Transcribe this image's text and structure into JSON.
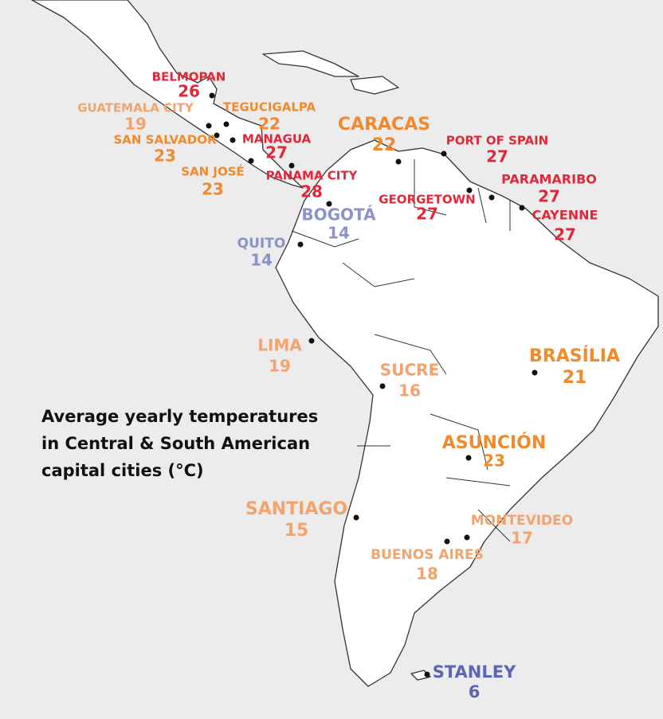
{
  "title_lines": [
    "Average yearly temperatures",
    "in Central & South American",
    "capital cities (°C)"
  ],
  "cities": [
    {
      "name": "BELMOPAN",
      "value": 26,
      "color": "#e0283a"
    },
    {
      "name": "GUATEMALA CITY",
      "value": 19,
      "color": "#f2a36e"
    },
    {
      "name": "TEGUCIGALPA",
      "value": 22,
      "color": "#f08a2c"
    },
    {
      "name": "SAN SALVADOR",
      "value": 23,
      "color": "#f08a2c"
    },
    {
      "name": "MANAGUA",
      "value": 27,
      "color": "#e0283a"
    },
    {
      "name": "SAN JOSÉ",
      "value": 23,
      "color": "#f08a2c"
    },
    {
      "name": "PANAMA CITY",
      "value": 28,
      "color": "#e0283a"
    },
    {
      "name": "CARACAS",
      "value": 22,
      "color": "#f08a2c"
    },
    {
      "name": "PORT OF SPAIN",
      "value": 27,
      "color": "#e0283a"
    },
    {
      "name": "PARAMARIBO",
      "value": 27,
      "color": "#e0283a"
    },
    {
      "name": "GEORGETOWN",
      "value": 27,
      "color": "#e0283a"
    },
    {
      "name": "CAYENNE",
      "value": 27,
      "color": "#e0283a"
    },
    {
      "name": "BOGOTÁ",
      "value": 14,
      "color": "#8b93c8"
    },
    {
      "name": "QUITO",
      "value": 14,
      "color": "#8b93c8"
    },
    {
      "name": "LIMA",
      "value": 19,
      "color": "#f2a36e"
    },
    {
      "name": "SUCRE",
      "value": 16,
      "color": "#f2a36e"
    },
    {
      "name": "BRASÍLIA",
      "value": 21,
      "color": "#f08a2c"
    },
    {
      "name": "ASUNCIÓN",
      "value": 23,
      "color": "#f08a2c"
    },
    {
      "name": "SANTIAGO",
      "value": 15,
      "color": "#f2a36e"
    },
    {
      "name": "MONTEVIDEO",
      "value": 17,
      "color": "#f2a36e"
    },
    {
      "name": "BUENOS AIRES",
      "value": 18,
      "color": "#f2a36e"
    },
    {
      "name": "STANLEY",
      "value": 6,
      "color": "#5b64b5"
    }
  ]
}
